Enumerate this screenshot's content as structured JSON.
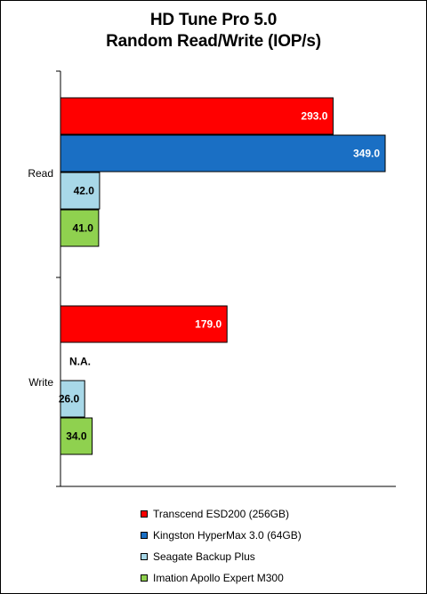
{
  "chart_data": {
    "type": "bar",
    "orientation": "horizontal",
    "title": "HD Tune Pro 5.0",
    "subtitle": "Random Read/Write (IOP/s)",
    "categories": [
      "Read",
      "Write"
    ],
    "series": [
      {
        "name": "Transcend ESD200 (256GB)",
        "color": "#ff0000",
        "values": [
          293.0,
          179.0
        ],
        "labels": [
          "293.0",
          "179.0"
        ]
      },
      {
        "name": "Kingston HyperMax 3.0 (64GB)",
        "color": "#1a6fc4",
        "values": [
          349.0,
          null
        ],
        "labels": [
          "349.0",
          "N.A."
        ]
      },
      {
        "name": "Seagate Backup Plus",
        "color": "#a8d8e8",
        "values": [
          42.0,
          26.0
        ],
        "labels": [
          "42.0",
          "26.0"
        ]
      },
      {
        "name": "Imation Apollo Expert M300",
        "color": "#8fd14f",
        "values": [
          41.0,
          34.0
        ],
        "labels": [
          "41.0",
          "34.0"
        ]
      }
    ],
    "xlim": [
      0,
      349
    ],
    "grid": false,
    "legend": "bottom"
  }
}
